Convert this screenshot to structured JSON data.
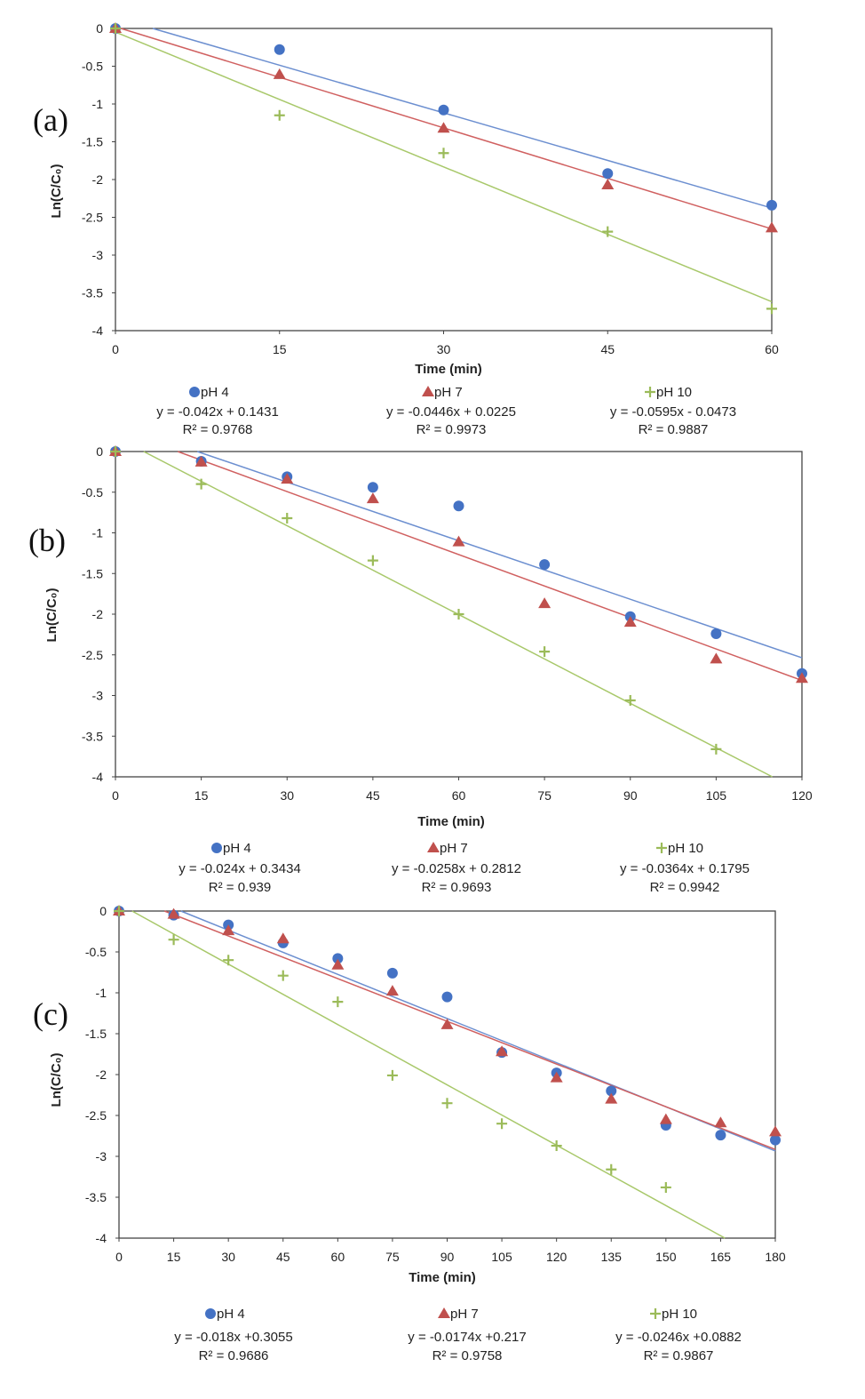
{
  "colors": {
    "pH 4": "#4472C4",
    "pH 7": "#C0504D",
    "pH 10": "#9BBB59",
    "line_pH 4": "#6C8FD0",
    "line_pH 7": "#D06060",
    "line_pH 10": "#A8C86A"
  },
  "chart_data": [
    {
      "type": "scatter",
      "panel_label": "(a)",
      "xlabel": "Time (min)",
      "ylabel": "Ln(C/C₀)",
      "xlim": [
        0,
        60
      ],
      "ylim": [
        -4,
        0
      ],
      "xticks": [
        0,
        15,
        30,
        45,
        60
      ],
      "yticks": [
        0,
        -0.5,
        -1,
        -1.5,
        -2,
        -2.5,
        -3,
        -3.5,
        -4
      ],
      "grid": false,
      "legend": "bottom",
      "series": [
        {
          "name": "pH 4",
          "marker": "circle",
          "x": [
            0,
            15,
            30,
            45,
            60
          ],
          "y": [
            0,
            -0.28,
            -1.08,
            -1.92,
            -2.34
          ],
          "slope": -0.042,
          "intercept": 0.1431,
          "equation": "y = -0.042x + 0.1431",
          "r2": "R² = 0.9768"
        },
        {
          "name": "pH 7",
          "marker": "triangle",
          "x": [
            0,
            15,
            30,
            45,
            60
          ],
          "y": [
            0,
            -0.61,
            -1.32,
            -2.07,
            -2.64
          ],
          "slope": -0.0446,
          "intercept": 0.0225,
          "equation": "y = -0.0446x + 0.0225",
          "r2": "R² = 0.9973"
        },
        {
          "name": "pH 10",
          "marker": "plus",
          "x": [
            0,
            15,
            30,
            45,
            60
          ],
          "y": [
            0,
            -1.15,
            -1.65,
            -2.69,
            -3.71
          ],
          "slope": -0.0595,
          "intercept": -0.0473,
          "equation": "y = -0.0595x - 0.0473",
          "r2": "R² = 0.9887"
        }
      ]
    },
    {
      "type": "scatter",
      "panel_label": "(b)",
      "xlabel": "Time (min)",
      "ylabel": "Ln(C/C₀)",
      "xlim": [
        0,
        120
      ],
      "ylim": [
        -4,
        0
      ],
      "xticks": [
        0,
        15,
        30,
        45,
        60,
        75,
        90,
        105,
        120
      ],
      "yticks": [
        0,
        -0.5,
        -1,
        -1.5,
        -2,
        -2.5,
        -3,
        -3.5,
        -4
      ],
      "grid": false,
      "legend": "bottom",
      "series": [
        {
          "name": "pH 4",
          "marker": "circle",
          "x": [
            0,
            15,
            30,
            45,
            60,
            75,
            90,
            105,
            120
          ],
          "y": [
            0,
            -0.12,
            -0.31,
            -0.44,
            -0.67,
            -1.39,
            -2.03,
            -2.24,
            -2.73
          ],
          "slope": -0.024,
          "intercept": 0.3434,
          "equation": "y = -0.024x + 0.3434",
          "r2": "R² = 0.939"
        },
        {
          "name": "pH 7",
          "marker": "triangle",
          "x": [
            0,
            15,
            30,
            45,
            60,
            75,
            90,
            105,
            120
          ],
          "y": [
            0,
            -0.13,
            -0.34,
            -0.58,
            -1.11,
            -1.87,
            -2.1,
            -2.55,
            -2.79
          ],
          "slope": -0.0258,
          "intercept": 0.2812,
          "equation": "y = -0.0258x + 0.2812",
          "r2": "R² = 0.9693"
        },
        {
          "name": "pH 10",
          "marker": "plus",
          "x": [
            0,
            15,
            30,
            45,
            60,
            75,
            90,
            105
          ],
          "y": [
            0,
            -0.4,
            -0.82,
            -1.34,
            -2.0,
            -2.46,
            -3.06,
            -3.66
          ],
          "slope": -0.0364,
          "intercept": 0.1795,
          "equation": "y = -0.0364x + 0.1795",
          "r2": "R² = 0.9942"
        }
      ]
    },
    {
      "type": "scatter",
      "panel_label": "(c)",
      "xlabel": "Time (min)",
      "ylabel": "Ln(C/C₀)",
      "xlim": [
        0,
        180
      ],
      "ylim": [
        -4,
        0
      ],
      "xticks": [
        0,
        15,
        30,
        45,
        60,
        75,
        90,
        105,
        120,
        135,
        150,
        165,
        180
      ],
      "yticks": [
        0,
        -0.5,
        -1,
        -1.5,
        -2,
        -2.5,
        -3,
        -3.5,
        -4
      ],
      "grid": false,
      "legend": "bottom",
      "series": [
        {
          "name": "pH 4",
          "marker": "circle",
          "x": [
            0,
            15,
            30,
            45,
            60,
            75,
            90,
            105,
            120,
            135,
            150,
            165,
            180
          ],
          "y": [
            0,
            -0.05,
            -0.17,
            -0.39,
            -0.58,
            -0.76,
            -1.05,
            -1.73,
            -1.98,
            -2.2,
            -2.62,
            -2.74,
            -2.8
          ],
          "slope": -0.018,
          "intercept": 0.3055,
          "equation": "y = -0.018x +0.3055",
          "r2": "R² = 0.9686"
        },
        {
          "name": "pH 7",
          "marker": "triangle",
          "x": [
            0,
            15,
            30,
            45,
            60,
            75,
            90,
            105,
            120,
            135,
            150,
            165,
            180
          ],
          "y": [
            0,
            -0.04,
            -0.24,
            -0.34,
            -0.66,
            -0.98,
            -1.39,
            -1.72,
            -2.04,
            -2.3,
            -2.55,
            -2.59,
            -2.7
          ],
          "slope": -0.0174,
          "intercept": 0.217,
          "equation": "y = -0.0174x +0.217",
          "r2": "R² = 0.9758"
        },
        {
          "name": "pH 10",
          "marker": "plus",
          "x": [
            0,
            15,
            30,
            45,
            60,
            75,
            90,
            105,
            120,
            135,
            150
          ],
          "y": [
            0,
            -0.35,
            -0.6,
            -0.79,
            -1.11,
            -2.01,
            -2.35,
            -2.6,
            -2.87,
            -3.16,
            -3.38
          ],
          "slope": -0.0246,
          "intercept": 0.0882,
          "equation": "y = -0.0246x +0.0882",
          "r2": "R² = 0.9867"
        }
      ]
    }
  ]
}
